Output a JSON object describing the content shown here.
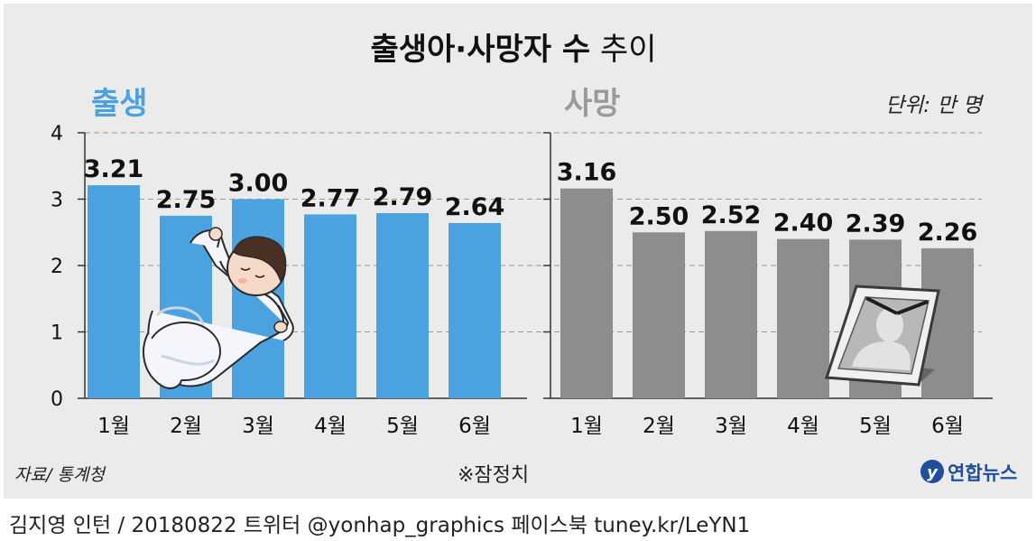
{
  "title_bold": "출생아·사망자 수",
  "title_rest": "추이",
  "unit": "단위: 만 명",
  "source": "자료/ 통계청",
  "note": "※잠정치",
  "logo_text": "연합뉴스",
  "credit": "김지영 인턴 / 20180822 트위터 @yonhap_graphics  페이스북 tuney.kr/LeYN1",
  "colors": {
    "birth": "#4aa3df",
    "death": "#8c8d8f",
    "background": "#ebebeb",
    "logo": "#1f4e9d"
  },
  "chart_data": [
    {
      "type": "bar",
      "panel_title": "출생",
      "categories": [
        "1월",
        "2월",
        "3월",
        "4월",
        "5월",
        "6월"
      ],
      "values": [
        3.21,
        2.75,
        3.0,
        2.77,
        2.79,
        2.64
      ],
      "labels": [
        "3.21",
        "2.75",
        "3.00",
        "2.77",
        "2.79",
        "2.64"
      ],
      "ylim": [
        0,
        4
      ],
      "yticks": [
        "0",
        "1",
        "2",
        "3",
        "4"
      ],
      "grid": true,
      "illustration": "baby"
    },
    {
      "type": "bar",
      "panel_title": "사망",
      "categories": [
        "1월",
        "2월",
        "3월",
        "4월",
        "5월",
        "6월"
      ],
      "values": [
        3.16,
        2.5,
        2.52,
        2.4,
        2.39,
        2.26
      ],
      "labels": [
        "3.16",
        "2.50",
        "2.52",
        "2.40",
        "2.39",
        "2.26"
      ],
      "ylim": [
        0,
        4
      ],
      "grid": true,
      "illustration": "memorial-portrait"
    }
  ]
}
